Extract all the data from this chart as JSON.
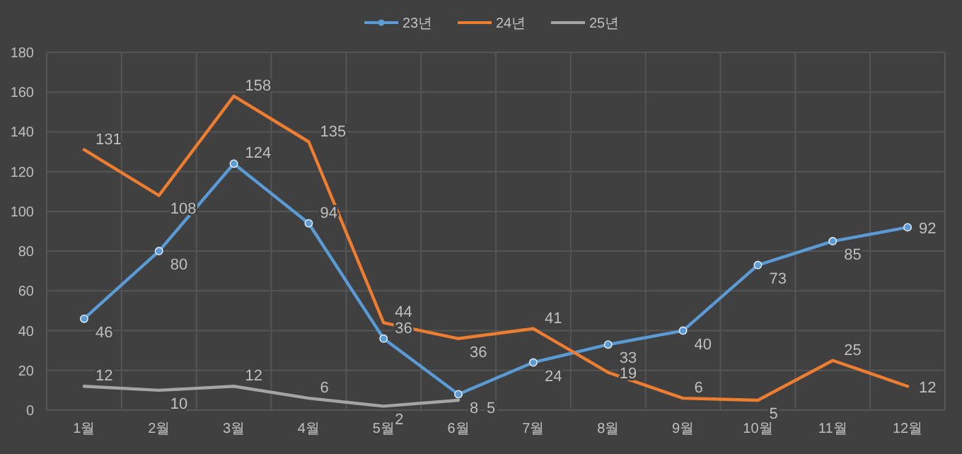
{
  "chart_data": {
    "type": "line",
    "categories": [
      "1월",
      "2월",
      "3월",
      "4월",
      "5월",
      "6월",
      "7월",
      "8월",
      "9월",
      "10월",
      "11월",
      "12월"
    ],
    "series": [
      {
        "name": "23년",
        "color": "#5b9bd5",
        "marker": "circle",
        "values": [
          46,
          80,
          124,
          94,
          36,
          8,
          24,
          33,
          40,
          73,
          85,
          92
        ]
      },
      {
        "name": "24년",
        "color": "#ed7d31",
        "marker": "none",
        "values": [
          131,
          108,
          158,
          135,
          44,
          36,
          41,
          19,
          6,
          5,
          25,
          12
        ]
      },
      {
        "name": "25년",
        "color": "#a5a5a5",
        "marker": "none",
        "values": [
          12,
          10,
          12,
          6,
          2,
          5,
          null,
          null,
          null,
          null,
          null,
          null
        ]
      }
    ],
    "ylim": [
      0,
      180
    ],
    "yticks": [
      0,
      20,
      40,
      60,
      80,
      100,
      120,
      140,
      160,
      180
    ],
    "grid": true,
    "legend": "top",
    "data_labels": true
  }
}
